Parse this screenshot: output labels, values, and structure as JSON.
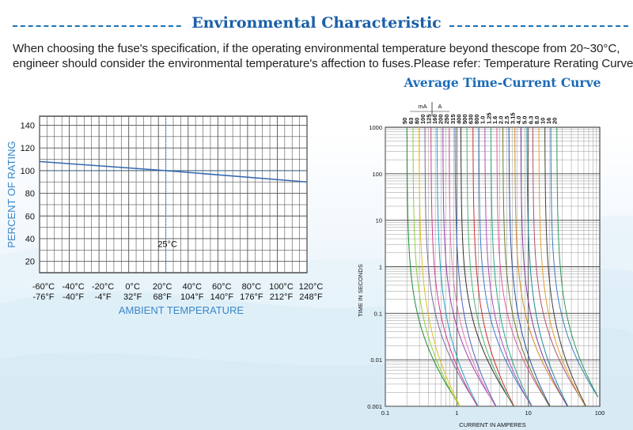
{
  "header": {
    "title": "Environmental Characteristic"
  },
  "intro": {
    "line1": "When choosing the fuse's specification, if the operating environmental temperature beyond thescope from 20~30°C,",
    "line2": "engineer should consider the environmental temperature's affection to fuses.Please refer: Temperature Rerating Curve:"
  },
  "right_title": "Average Time-Current Curve",
  "colors": {
    "accent": "#1a73b7",
    "rerating_line": "#3468b0",
    "label_blue": "#3a86c8"
  },
  "chart_data": [
    {
      "type": "line",
      "name": "Temperature Rerating Curve",
      "title": "",
      "ylabel": "PERCENT OF RATING",
      "xlabel": "AMBIENT TEMPERATURE",
      "y_ticks": [
        20,
        40,
        60,
        80,
        100,
        120,
        140
      ],
      "ylim": [
        10,
        148
      ],
      "x_tick_labels_c": [
        "-60°C",
        "-40°C",
        "-20°C",
        "0°C",
        "20°C",
        "40°C",
        "60°C",
        "80°C",
        "100°C",
        "120°C"
      ],
      "x_tick_labels_f": [
        "-76°F",
        "-40°F",
        "-4°F",
        "32°F",
        "68°F",
        "104°F",
        "140°F",
        "176°F",
        "212°F",
        "248°F"
      ],
      "xlim": [
        -60,
        120
      ],
      "grid": true,
      "reference": {
        "x": 25,
        "y": 100,
        "label": "25°C"
      },
      "series": [
        {
          "x": [
            -60,
            25,
            120
          ],
          "y": [
            108,
            100,
            90
          ]
        }
      ]
    },
    {
      "type": "line",
      "title": "",
      "xlabel": "CURRENT IN AMPERES",
      "ylabel": "TIME IN SECONDS",
      "x_scale": "log",
      "y_scale": "log",
      "xlim": [
        0.1,
        100
      ],
      "ylim": [
        0.001,
        1000
      ],
      "x_tick_labels": [
        "0.1",
        "1",
        "10",
        "100"
      ],
      "y_tick_labels": [
        "0.001",
        "0.01",
        "0.1",
        "1",
        "10",
        "100",
        "1000"
      ],
      "top_units": [
        "mA",
        "A"
      ],
      "grid": true,
      "ratings": [
        {
          "label": "50",
          "amps": 0.05,
          "color": "#1d8a3a"
        },
        {
          "label": "63",
          "amps": 0.063,
          "color": "#8fcf3a"
        },
        {
          "label": "80",
          "amps": 0.08,
          "color": "#e0c020"
        },
        {
          "label": "100",
          "amps": 0.1,
          "color": "#7a6b9e"
        },
        {
          "label": "125",
          "amps": 0.125,
          "color": "#d03c8c"
        },
        {
          "label": "160",
          "amps": 0.16,
          "color": "#24a0c8"
        },
        {
          "label": "200",
          "amps": 0.2,
          "color": "#9a40b0"
        },
        {
          "label": "250",
          "amps": 0.25,
          "color": "#e77ab0"
        },
        {
          "label": "315",
          "amps": 0.315,
          "color": "#4a62c0"
        },
        {
          "label": "400",
          "amps": 0.4,
          "color": "#2f2f2f"
        },
        {
          "label": "500",
          "amps": 0.5,
          "color": "#50b070"
        },
        {
          "label": "630",
          "amps": 0.63,
          "color": "#c83030"
        },
        {
          "label": "800",
          "amps": 0.8,
          "color": "#3a7acc"
        },
        {
          "label": "1.0",
          "amps": 1.0,
          "color": "#b04fb8"
        },
        {
          "label": "1.25",
          "amps": 1.25,
          "color": "#2aa888"
        },
        {
          "label": "1.6",
          "amps": 1.6,
          "color": "#e05c9a"
        },
        {
          "label": "2.0",
          "amps": 2.0,
          "color": "#6a7a2a"
        },
        {
          "label": "2.5",
          "amps": 2.5,
          "color": "#3050a0"
        },
        {
          "label": "3.15",
          "amps": 3.15,
          "color": "#d08a20"
        },
        {
          "label": "4.0",
          "amps": 4.0,
          "color": "#7e3a9a"
        },
        {
          "label": "5.0",
          "amps": 5.0,
          "color": "#1a8a9a"
        },
        {
          "label": "6.3",
          "amps": 6.3,
          "color": "#b0506a"
        },
        {
          "label": "8.0",
          "amps": 8.0,
          "color": "#e0a030"
        },
        {
          "label": "10",
          "amps": 10,
          "color": "#404040"
        },
        {
          "label": "16",
          "amps": 16,
          "color": "#3a7ac0"
        },
        {
          "label": "20",
          "amps": 20,
          "color": "#2a9a5a"
        }
      ]
    }
  ]
}
